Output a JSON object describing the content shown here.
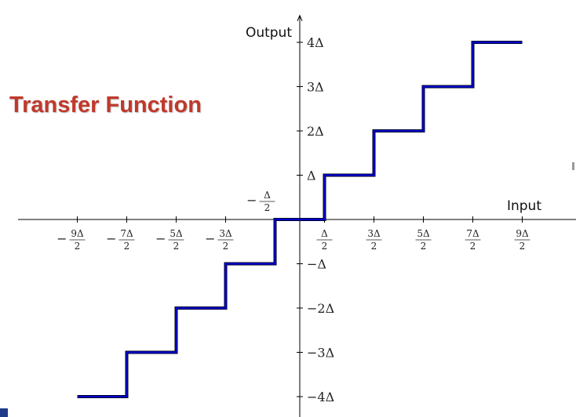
{
  "slide": {
    "title": "Transfer Function",
    "title_color": "#c0392b",
    "accent_color": "#1f3c88"
  },
  "chart_data": {
    "type": "line",
    "title": "",
    "xlabel": "Input",
    "ylabel": "Output",
    "units": "Δ",
    "xlim": [
      -5.7,
      6.0
    ],
    "ylim": [
      -4.5,
      4.5
    ],
    "grid": false,
    "line_color": "#0000cc",
    "x_ticks": [
      {
        "value": -4.5,
        "num": "9Δ",
        "den": "2",
        "sign": "−"
      },
      {
        "value": -3.5,
        "num": "7Δ",
        "den": "2",
        "sign": "−"
      },
      {
        "value": -2.5,
        "num": "5Δ",
        "den": "2",
        "sign": "−"
      },
      {
        "value": -1.5,
        "num": "3Δ",
        "den": "2",
        "sign": "−"
      },
      {
        "value": 0.5,
        "num": "Δ",
        "den": "2",
        "sign": ""
      },
      {
        "value": 1.5,
        "num": "3Δ",
        "den": "2",
        "sign": ""
      },
      {
        "value": 2.5,
        "num": "5Δ",
        "den": "2",
        "sign": ""
      },
      {
        "value": 3.5,
        "num": "7Δ",
        "den": "2",
        "sign": ""
      },
      {
        "value": 4.5,
        "num": "9Δ",
        "den": "2",
        "sign": ""
      }
    ],
    "neg_half_label": {
      "value": -0.5,
      "num": "Δ",
      "den": "2",
      "sign": "−"
    },
    "y_ticks": [
      {
        "value": 4,
        "label": "4Δ"
      },
      {
        "value": 3,
        "label": "3Δ"
      },
      {
        "value": 2,
        "label": "2Δ"
      },
      {
        "value": 1,
        "label": "Δ"
      },
      {
        "value": -1,
        "label": "−Δ"
      },
      {
        "value": -2,
        "label": "−2Δ"
      },
      {
        "value": -3,
        "label": "−3Δ"
      },
      {
        "value": -4,
        "label": "−4Δ"
      }
    ],
    "series": [
      {
        "x": [
          -4.5,
          -3.5,
          -3.5,
          -2.5,
          -2.5,
          -1.5,
          -1.5,
          -0.5,
          -0.5,
          0.5,
          0.5,
          1.5,
          1.5,
          2.5,
          2.5,
          3.5,
          3.5,
          4.5
        ],
        "y": [
          -4,
          -4,
          -3,
          -3,
          -2,
          -2,
          -1,
          -1,
          0,
          0,
          1,
          1,
          2,
          2,
          3,
          3,
          4,
          4
        ]
      }
    ]
  }
}
